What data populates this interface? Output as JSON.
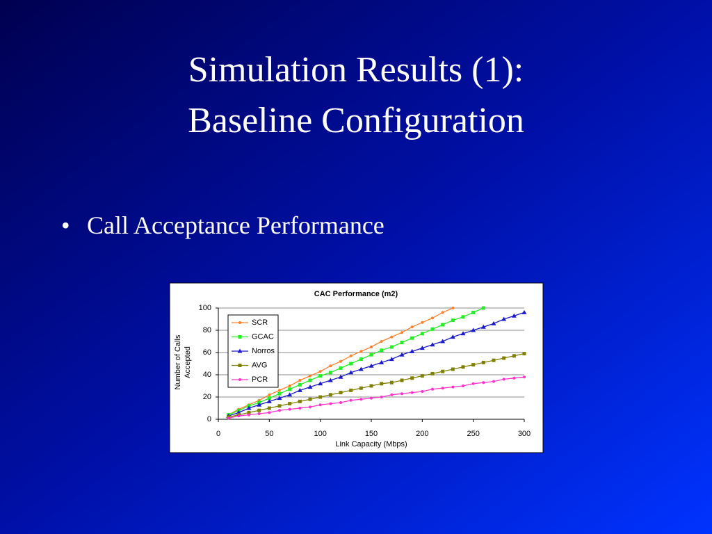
{
  "slide": {
    "title_lines": [
      "Simulation Results (1):",
      "Baseline Configuration"
    ],
    "bullets": [
      "Call Acceptance Performance"
    ]
  },
  "chart_data": {
    "type": "line",
    "title": "CAC Performance (m2)",
    "x_label": "Link Capacity (Mbps)",
    "y_label": [
      "Number of Calls",
      "Accepted"
    ],
    "x": [
      10,
      20,
      30,
      40,
      50,
      60,
      70,
      80,
      90,
      100,
      110,
      120,
      130,
      140,
      150,
      160,
      170,
      180,
      190,
      200,
      210,
      220,
      230,
      240,
      250,
      260,
      270,
      280,
      290,
      300
    ],
    "series": [
      {
        "name": "SCR",
        "color": "#ff7f27",
        "marker": "circle",
        "values": [
          4,
          9,
          13,
          17,
          22,
          26,
          30,
          35,
          39,
          43,
          48,
          52,
          57,
          61,
          65,
          70,
          74,
          78,
          83,
          87,
          91,
          96,
          100,
          null,
          null,
          null,
          null,
          null,
          null,
          null
        ]
      },
      {
        "name": "GCAC",
        "color": "#22ee22",
        "marker": "square",
        "values": [
          4,
          8,
          12,
          15,
          19,
          23,
          27,
          31,
          35,
          39,
          42,
          46,
          50,
          54,
          58,
          62,
          65,
          69,
          73,
          77,
          81,
          85,
          89,
          92,
          96,
          100,
          null,
          null,
          null,
          null
        ]
      },
      {
        "name": "Norros",
        "color": "#1a1acc",
        "marker": "triangle",
        "values": [
          3,
          6,
          10,
          13,
          16,
          19,
          22,
          26,
          29,
          32,
          35,
          38,
          42,
          45,
          48,
          51,
          54,
          58,
          61,
          64,
          67,
          70,
          74,
          77,
          80,
          83,
          86,
          90,
          93,
          96
        ]
      },
      {
        "name": "AVG",
        "color": "#808000",
        "marker": "square",
        "values": [
          2,
          4,
          6,
          8,
          10,
          12,
          14,
          16,
          18,
          20,
          22,
          24,
          26,
          28,
          30,
          32,
          33,
          35,
          37,
          39,
          41,
          43,
          45,
          47,
          49,
          51,
          53,
          55,
          57,
          59
        ]
      },
      {
        "name": "PCR",
        "color": "#ff33cc",
        "marker": "circle",
        "values": [
          1,
          3,
          4,
          5,
          6,
          8,
          9,
          10,
          11,
          13,
          14,
          15,
          17,
          18,
          19,
          20,
          22,
          23,
          24,
          25,
          27,
          28,
          29,
          30,
          32,
          33,
          34,
          36,
          37,
          38
        ]
      }
    ],
    "xlim": [
      0,
      300
    ],
    "xticks": [
      0,
      50,
      100,
      150,
      200,
      250,
      300
    ],
    "ylim": [
      0,
      100
    ],
    "yticks": [
      0,
      20,
      40,
      60,
      80,
      100
    ],
    "grid": true,
    "legend": "upper left"
  }
}
